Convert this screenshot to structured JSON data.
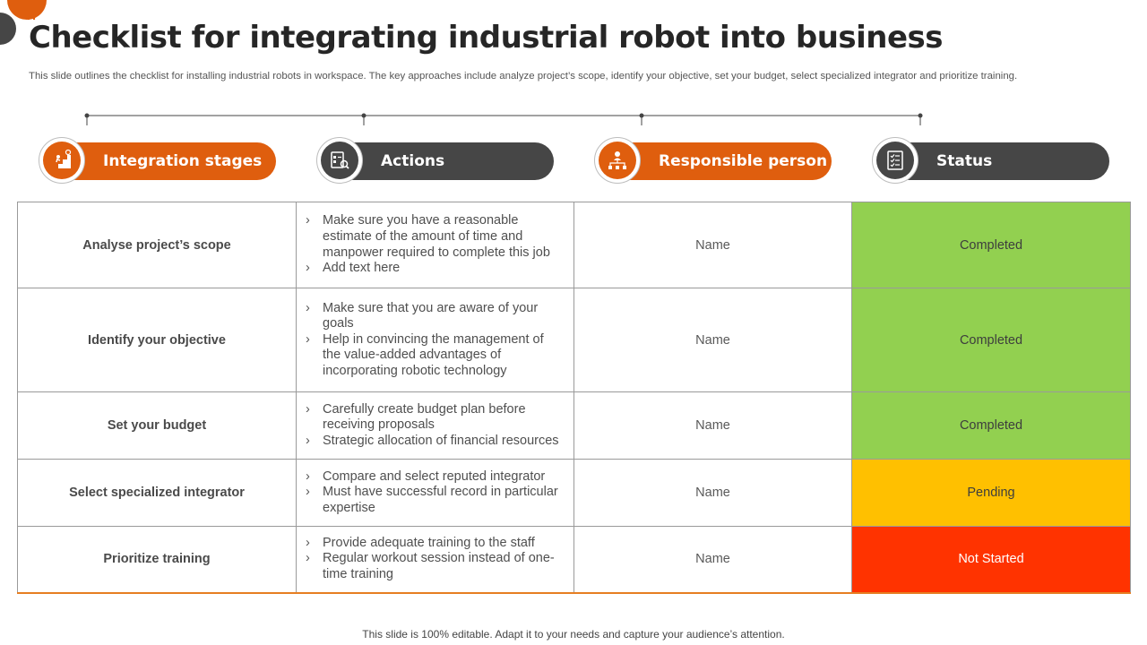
{
  "title": "Checklist for integrating industrial robot into business",
  "subtitle": "This slide outlines the checklist for installing industrial robots in workspace. The key approaches include analyze project’s scope, identify your objective, set your budget, select specialized integrator and prioritize training.",
  "colors": {
    "accent_orange": "#df5e0e",
    "dark_gray": "#464646",
    "completed": "#92d050",
    "pending": "#ffc000",
    "not_started": "#ff3300"
  },
  "headers": [
    {
      "label": "Integration stages",
      "icon": "stairs-progress-icon",
      "color": "orange"
    },
    {
      "label": "Actions",
      "icon": "clipboard-search-icon",
      "color": "dark"
    },
    {
      "label": "Responsible person",
      "icon": "org-chart-person-icon",
      "color": "orange"
    },
    {
      "label": "Status",
      "icon": "checklist-icon",
      "color": "dark"
    }
  ],
  "rows": [
    {
      "stage": "Analyse project’s scope",
      "actions": [
        "Make sure you have a reasonable estimate of the amount of time and manpower required to complete this job",
        "Add text here"
      ],
      "person": "Name",
      "status": "Completed",
      "status_color": "#92d050"
    },
    {
      "stage": "Identify your objective",
      "actions": [
        "Make sure that you are aware of your goals",
        "Help in convincing the management of the value-added advantages of incorporating robotic technology"
      ],
      "person": "Name",
      "status": "Completed",
      "status_color": "#92d050"
    },
    {
      "stage": "Set your budget",
      "actions": [
        "Carefully create budget plan before receiving proposals",
        "Strategic allocation of financial resources"
      ],
      "person": "Name",
      "status": "Completed",
      "status_color": "#92d050"
    },
    {
      "stage": "Select specialized integrator",
      "actions": [
        "Compare and select reputed integrator",
        "Must have successful record in particular expertise"
      ],
      "person": "Name",
      "status": "Pending",
      "status_color": "#ffc000"
    },
    {
      "stage": "Prioritize training",
      "actions": [
        "Provide adequate training to the staff",
        "Regular workout session instead of one-time training"
      ],
      "person": "Name",
      "status": "Not Started",
      "status_color": "#ff3300"
    }
  ],
  "footer": "This slide is 100% editable. Adapt it to your needs and capture your audience’s attention."
}
